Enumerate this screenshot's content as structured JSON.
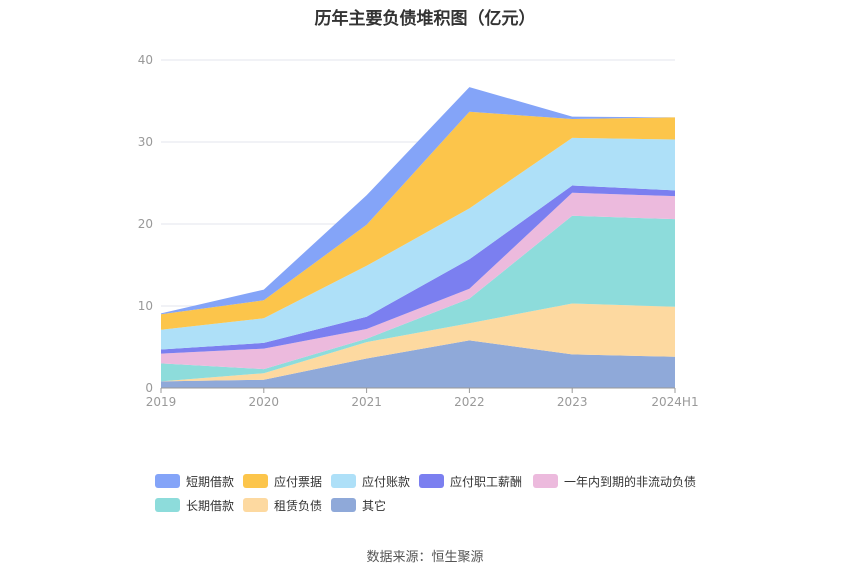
{
  "chart_data": {
    "type": "area",
    "stacked": true,
    "title": "历年主要负债堆积图（亿元）",
    "source": "数据来源：恒生聚源",
    "categories": [
      "2019",
      "2020",
      "2021",
      "2022",
      "2023",
      "2024H1"
    ],
    "y_ticks": [
      "0",
      "10",
      "20",
      "30",
      "40"
    ],
    "ylim": [
      0,
      40
    ],
    "grid": true,
    "legend_position": "bottom",
    "series": [
      {
        "name": "其它",
        "color": "#8fa9d9",
        "values": [
          0.8,
          1.0,
          3.6,
          5.8,
          4.1,
          3.8
        ]
      },
      {
        "name": "租赁负债",
        "color": "#fdd9a0",
        "values": [
          0.0,
          0.8,
          2.0,
          2.1,
          6.2,
          6.1
        ]
      },
      {
        "name": "长期借款",
        "color": "#8ddcdb",
        "values": [
          2.2,
          0.5,
          0.4,
          3.0,
          10.7,
          10.7
        ]
      },
      {
        "name": "一年内到期的非流动负债",
        "color": "#ecbadd",
        "values": [
          1.2,
          2.5,
          1.2,
          1.2,
          2.8,
          2.8
        ]
      },
      {
        "name": "应付职工薪酬",
        "color": "#7b7ff0",
        "values": [
          0.5,
          0.7,
          1.5,
          3.6,
          0.9,
          0.7
        ]
      },
      {
        "name": "应付账款",
        "color": "#aee0f8",
        "values": [
          2.4,
          3.0,
          6.2,
          6.2,
          5.8,
          6.2
        ]
      },
      {
        "name": "应付票据",
        "color": "#fcc54b",
        "values": [
          1.9,
          2.2,
          5.0,
          11.8,
          2.3,
          2.7
        ]
      },
      {
        "name": "短期借款",
        "color": "#84a4f8",
        "values": [
          0.1,
          1.3,
          3.6,
          3.0,
          0.3,
          0.0
        ]
      }
    ],
    "legend": [
      {
        "name": "短期借款",
        "color": "#84a4f8"
      },
      {
        "name": "应付票据",
        "color": "#fcc54b"
      },
      {
        "name": "应付账款",
        "color": "#aee0f8"
      },
      {
        "name": "应付职工薪酬",
        "color": "#7b7ff0"
      },
      {
        "name": "一年内到期的非流动负债",
        "color": "#ecbadd"
      },
      {
        "name": "长期借款",
        "color": "#8ddcdb"
      },
      {
        "name": "租赁负债",
        "color": "#fdd9a0"
      },
      {
        "name": "其它",
        "color": "#8fa9d9"
      }
    ]
  }
}
